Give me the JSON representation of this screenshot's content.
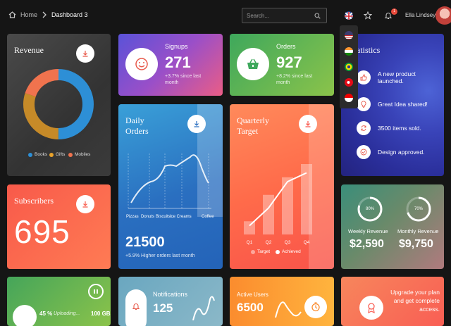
{
  "breadcrumb": {
    "home": "Home",
    "current": "Dashboard 3"
  },
  "search": {
    "placeholder": "Search..."
  },
  "user": {
    "name": "Ella Lindsey",
    "notifications": "1"
  },
  "revenue": {
    "title": "Revenue",
    "legend": [
      "Books",
      "Gifts",
      "Mobiles"
    ],
    "colors": [
      "#2d8fd6",
      "#e8a22b",
      "#f0734e"
    ],
    "values": [
      50,
      30,
      20
    ]
  },
  "signups": {
    "title": "Signups",
    "value": "271",
    "sub": "+3.7% since last month"
  },
  "orders": {
    "title": "Orders",
    "value": "927",
    "sub": "+8.2% since last month"
  },
  "statistics": {
    "title": "Statistics",
    "items": [
      "A new product launched.",
      "Great Idea shared!",
      "3500 items sold.",
      "Design approved."
    ]
  },
  "daily": {
    "title1": "Daily",
    "title2": "Orders",
    "labels": [
      "Pizzas",
      "Donuts",
      "Biscuits",
      "Ice Creams",
      "Coffee"
    ],
    "value": "21500",
    "sub": "+5.9% Higher orders last month"
  },
  "quarterly": {
    "title1": "Quarterly",
    "title2": "Target",
    "legend": [
      "Target",
      "Achieved"
    ]
  },
  "chart_data": {
    "type": "bar",
    "categories": [
      "Q1",
      "Q2",
      "Q3",
      "Q4"
    ],
    "series": [
      {
        "name": "Target",
        "values": [
          15,
          45,
          65,
          80
        ]
      },
      {
        "name": "Achieved",
        "values": [
          10,
          30,
          60,
          70
        ]
      }
    ],
    "ylim": [
      0,
      100
    ]
  },
  "subscribers": {
    "title": "Subscribers",
    "value": "695"
  },
  "weekly": {
    "value": "$2,590",
    "label": "Weekly Revenue",
    "pct": "80%",
    "fraction": 0.8
  },
  "monthly": {
    "value": "$9,750",
    "label": "Monthly Revenue",
    "pct": "70%",
    "fraction": 0.7
  },
  "upload": {
    "pct": "45 %",
    "text": "Uploading...",
    "size": "100 GB"
  },
  "notif": {
    "title": "Notifications",
    "value": "125"
  },
  "active": {
    "title": "Active Users",
    "value": "6500"
  },
  "upgrade": {
    "text": "Upgrade your plan and get complete access."
  }
}
